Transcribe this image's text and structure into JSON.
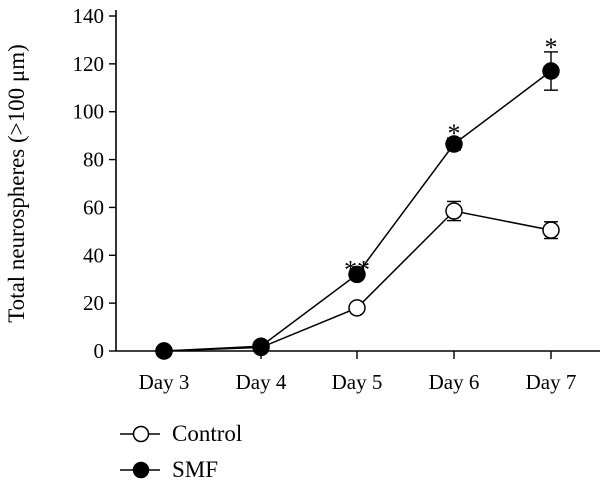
{
  "chart_data": {
    "type": "line",
    "ylabel": "Total neurospheres (>100 μm)",
    "xlabel": "",
    "categories": [
      "Day 3",
      "Day 4",
      "Day 5",
      "Day 6",
      "Day 7"
    ],
    "yticks": [
      0,
      20,
      40,
      60,
      80,
      100,
      120,
      140
    ],
    "ylim": [
      0,
      140
    ],
    "series": [
      {
        "name": "Control",
        "marker": "open-circle",
        "values": [
          0,
          1.5,
          18,
          58.5,
          50.5
        ],
        "error": [
          0,
          0,
          0,
          4,
          3.5
        ]
      },
      {
        "name": "SMF",
        "marker": "filled-circle",
        "values": [
          0,
          2,
          32,
          86.5,
          117
        ],
        "error": [
          0,
          0,
          0,
          2.5,
          8
        ]
      }
    ],
    "annotations": [
      {
        "category": "Day 5",
        "text": "**"
      },
      {
        "category": "Day 6",
        "text": "*"
      },
      {
        "category": "Day 7",
        "text": "*"
      }
    ],
    "legend_position": "bottom-left",
    "colors": {
      "line": "#000000",
      "filled_marker": "#000000",
      "open_marker": "#ffffff"
    }
  }
}
